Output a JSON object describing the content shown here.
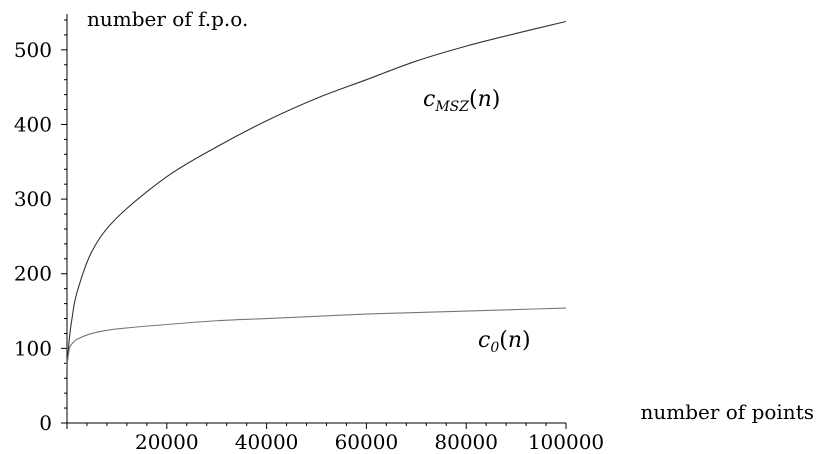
{
  "chart_data": {
    "type": "line",
    "title": "",
    "xlabel": "number of points",
    "ylabel": "number of f.p.o.",
    "xlim": [
      0,
      100000
    ],
    "ylim": [
      0,
      540
    ],
    "x_ticks": [
      20000,
      40000,
      60000,
      80000,
      100000
    ],
    "y_ticks": [
      0,
      100,
      200,
      300,
      400,
      500
    ],
    "grid": false,
    "legend": "none",
    "series": [
      {
        "name": "c_MSZ(n)",
        "label_main": "c",
        "label_sub": "MSZ",
        "label_arg": "(n)",
        "color": "#333333",
        "x": [
          0,
          500,
          1000,
          2000,
          5000,
          10000,
          20000,
          30000,
          40000,
          50000,
          60000,
          70000,
          80000,
          90000,
          100000
        ],
        "values": [
          75,
          115,
          140,
          175,
          230,
          275,
          330,
          370,
          405,
          435,
          460,
          485,
          505,
          522,
          538
        ]
      },
      {
        "name": "c_0(n)",
        "label_main": "c",
        "label_sub": "0",
        "label_arg": "(n)",
        "color": "#777777",
        "x": [
          0,
          500,
          1000,
          2000,
          5000,
          10000,
          20000,
          30000,
          40000,
          50000,
          60000,
          70000,
          80000,
          90000,
          100000
        ],
        "values": [
          78,
          100,
          106,
          112,
          120,
          126,
          132,
          137,
          140,
          143,
          146,
          148,
          150,
          152,
          154
        ]
      }
    ]
  }
}
